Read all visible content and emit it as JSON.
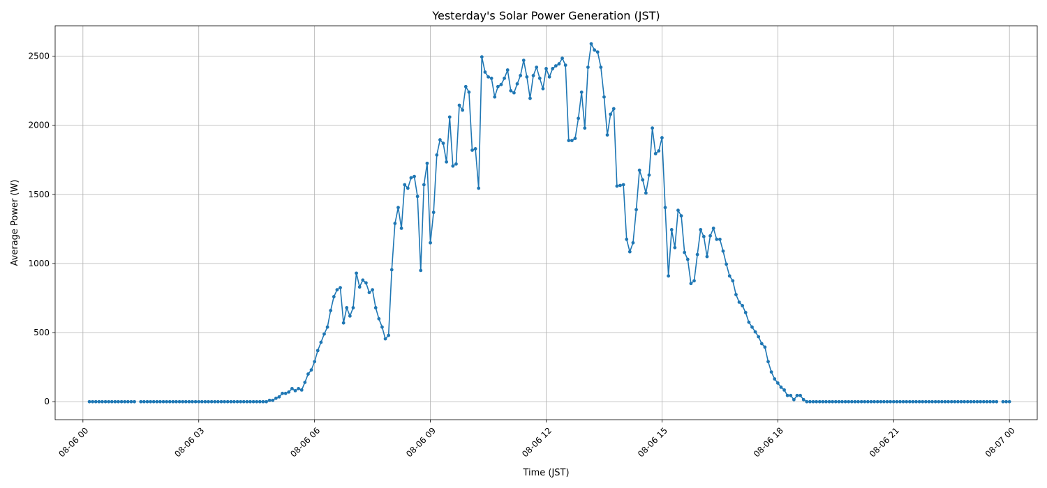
{
  "chart_data": {
    "type": "line",
    "title": "Yesterday's Solar Power Generation (JST)",
    "xlabel": "Time (JST)",
    "ylabel": "Average Power (W)",
    "xlim_hours": [
      -0.72,
      24.72
    ],
    "ylim": [
      -130,
      2720
    ],
    "grid": true,
    "x_ticks": [
      {
        "hour": 0,
        "label": "08-06 00"
      },
      {
        "hour": 3,
        "label": "08-06 03"
      },
      {
        "hour": 6,
        "label": "08-06 06"
      },
      {
        "hour": 9,
        "label": "08-06 09"
      },
      {
        "hour": 12,
        "label": "08-06 12"
      },
      {
        "hour": 15,
        "label": "08-06 15"
      },
      {
        "hour": 18,
        "label": "08-06 18"
      },
      {
        "hour": 21,
        "label": "08-06 21"
      },
      {
        "hour": 24,
        "label": "08-07 00"
      }
    ],
    "y_ticks": [
      {
        "value": 0,
        "label": "0"
      },
      {
        "value": 500,
        "label": "500"
      },
      {
        "value": 1000,
        "label": "1000"
      },
      {
        "value": 1500,
        "label": "1500"
      },
      {
        "value": 2000,
        "label": "2000"
      },
      {
        "value": 2500,
        "label": "2500"
      }
    ],
    "series": [
      {
        "name": "Average Power (W)",
        "color": "#1f77b4",
        "start_hour": 0.1667,
        "interval_minutes": 5,
        "values": [
          0,
          0,
          0,
          0,
          0,
          0,
          0,
          0,
          0,
          0,
          0,
          0,
          0,
          0,
          0,
          null,
          0,
          0,
          0,
          0,
          0,
          0,
          0,
          0,
          0,
          0,
          0,
          0,
          0,
          0,
          0,
          0,
          0,
          0,
          0,
          0,
          0,
          0,
          0,
          0,
          0,
          0,
          0,
          0,
          0,
          0,
          0,
          0,
          0,
          0,
          0,
          0,
          0,
          0,
          0,
          0,
          10,
          10,
          25,
          35,
          60,
          60,
          70,
          95,
          80,
          95,
          85,
          140,
          200,
          230,
          290,
          370,
          430,
          490,
          540,
          660,
          760,
          810,
          825,
          570,
          680,
          620,
          680,
          930,
          830,
          880,
          860,
          790,
          810,
          680,
          600,
          540,
          455,
          480,
          955,
          1290,
          1405,
          1255,
          1570,
          1545,
          1620,
          1630,
          1485,
          950,
          1570,
          1725,
          1150,
          1370,
          1785,
          1895,
          1870,
          1735,
          2060,
          1705,
          1720,
          2145,
          2110,
          2280,
          2240,
          1820,
          1830,
          1545,
          2495,
          2385,
          2350,
          2340,
          2205,
          2280,
          2295,
          2340,
          2400,
          2250,
          2235,
          2300,
          2360,
          2470,
          2350,
          2195,
          2360,
          2420,
          2340,
          2265,
          2410,
          2350,
          2410,
          2430,
          2445,
          2485,
          2435,
          1890,
          1890,
          1905,
          2050,
          2240,
          1980,
          2420,
          2590,
          2545,
          2530,
          2420,
          2205,
          1930,
          2080,
          2120,
          1560,
          1565,
          1570,
          1175,
          1085,
          1150,
          1390,
          1675,
          1605,
          1510,
          1640,
          1980,
          1795,
          1815,
          1910,
          1405,
          910,
          1245,
          1115,
          1385,
          1345,
          1080,
          1030,
          855,
          875,
          1065,
          1245,
          1195,
          1050,
          1200,
          1255,
          1175,
          1175,
          1090,
          995,
          910,
          875,
          775,
          720,
          695,
          645,
          575,
          540,
          505,
          470,
          420,
          395,
          290,
          215,
          165,
          135,
          105,
          85,
          45,
          45,
          15,
          45,
          45,
          15,
          0,
          0,
          0,
          0,
          0,
          0,
          0,
          0,
          0,
          0,
          0,
          0,
          0,
          0,
          0,
          0,
          0,
          0,
          0,
          0,
          0,
          0,
          0,
          0,
          0,
          0,
          0,
          0,
          0,
          0,
          0,
          0,
          0,
          0,
          0,
          0,
          0,
          0,
          0,
          0,
          0,
          0,
          0,
          0,
          0,
          0,
          0,
          0,
          0,
          0,
          0,
          0,
          0,
          0,
          0,
          0,
          0,
          0,
          0,
          0,
          null,
          0,
          0,
          0
        ]
      }
    ]
  }
}
